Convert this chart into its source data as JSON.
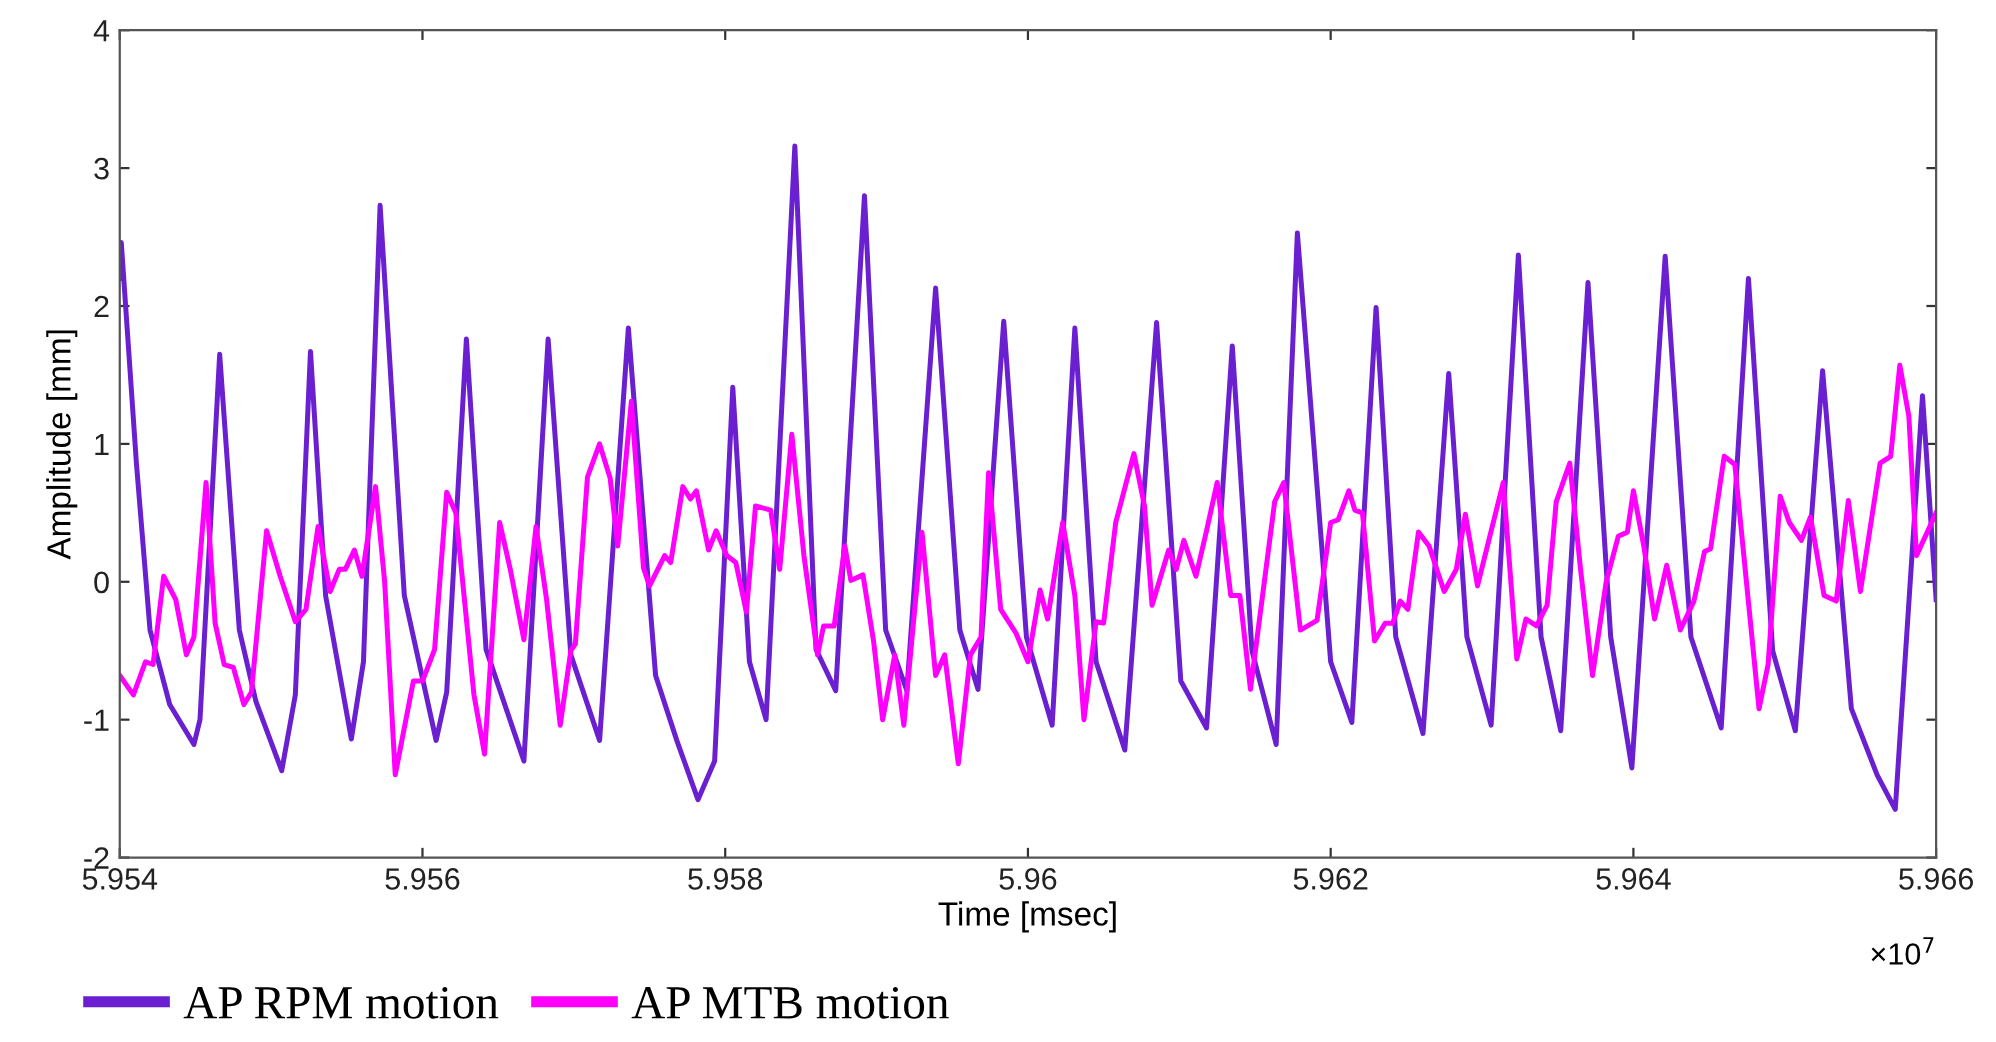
{
  "chart_data": {
    "type": "line",
    "xlabel": "Time [msec]",
    "ylabel": "Amplitude [mm]",
    "annotations": [
      "×10$^{7}$"
    ],
    "xlim": [
      5.954,
      5.966
    ],
    "xticks": [
      5.954,
      5.956,
      5.958,
      {
        "value": 5.96,
        "label": "5.96"
      },
      5.962,
      5.964,
      5.966
    ],
    "ylim": [
      -2,
      4
    ],
    "yticks": [
      -2,
      -1,
      0,
      1,
      2,
      3,
      4
    ],
    "grid": false,
    "legend": "bottom",
    "marker": "none",
    "line_style": "solid",
    "series": [
      {
        "name": "AP RPM motion",
        "color": "#6a1fd0",
        "x": [
          5.954,
          5.95401,
          5.95411,
          5.9542,
          5.95433,
          5.95449,
          5.95453,
          5.95466,
          5.95479,
          5.9549,
          5.95507,
          5.95516,
          5.95526,
          5.95536,
          5.95553,
          5.95561,
          5.95572,
          5.95588,
          5.95609,
          5.95616,
          5.95629,
          5.95642,
          5.95667,
          5.95683,
          5.95698,
          5.95717,
          5.95736,
          5.95754,
          5.95768,
          5.95782,
          5.95793,
          5.95805,
          5.95816,
          5.95827,
          5.95846,
          5.9586,
          5.95873,
          5.95892,
          5.95906,
          5.9592,
          5.95939,
          5.95955,
          5.95967,
          5.95984,
          5.95999,
          5.96016,
          5.96031,
          5.96045,
          5.96064,
          5.96085,
          5.96101,
          5.96118,
          5.96135,
          5.96148,
          5.96164,
          5.96178,
          5.962,
          5.96214,
          5.9623,
          5.96243,
          5.96261,
          5.96278,
          5.9629,
          5.96306,
          5.96324,
          5.96339,
          5.96352,
          5.9637,
          5.96385,
          5.96399,
          5.96421,
          5.96438,
          5.96458,
          5.96476,
          5.96492,
          5.96507,
          5.96525,
          5.96544,
          5.96561,
          5.96573,
          5.96591,
          5.966
        ],
        "values": [
          2.2,
          2.46,
          0.86,
          -0.35,
          -0.89,
          -1.18,
          -1.0,
          1.65,
          -0.35,
          -0.87,
          -1.37,
          -0.82,
          1.67,
          -0.1,
          -1.14,
          -0.58,
          2.73,
          -0.1,
          -1.15,
          -0.8,
          1.76,
          -0.49,
          -1.3,
          1.76,
          -0.53,
          -1.15,
          1.84,
          -0.68,
          -1.15,
          -1.58,
          -1.3,
          1.41,
          -0.58,
          -1.0,
          3.16,
          -0.49,
          -0.79,
          2.8,
          -0.35,
          -0.79,
          2.13,
          -0.35,
          -0.78,
          1.89,
          -0.4,
          -1.04,
          1.84,
          -0.58,
          -1.22,
          1.88,
          -0.72,
          -1.06,
          1.71,
          -0.5,
          -1.18,
          2.53,
          -0.58,
          -1.02,
          1.99,
          -0.4,
          -1.1,
          1.51,
          -0.4,
          -1.04,
          2.37,
          -0.4,
          -1.08,
          2.17,
          -0.4,
          -1.35,
          2.36,
          -0.4,
          -1.06,
          2.2,
          -0.5,
          -1.08,
          1.53,
          -0.92,
          -1.4,
          -1.65,
          1.35,
          -0.13
        ]
      },
      {
        "name": "AP MTB motion",
        "color": "#ff00ff",
        "x": [
          5.954,
          5.95409,
          5.95417,
          5.95422,
          5.95429,
          5.95437,
          5.95444,
          5.95449,
          5.95457,
          5.95463,
          5.95469,
          5.95475,
          5.95482,
          5.95487,
          5.95497,
          5.95506,
          5.95516,
          5.95523,
          5.95531,
          5.95539,
          5.95545,
          5.95549,
          5.95555,
          5.9556,
          5.95569,
          5.95575,
          5.95582,
          5.95594,
          5.956,
          5.95608,
          5.95616,
          5.95622,
          5.95634,
          5.95641,
          5.95651,
          5.95658,
          5.95667,
          5.95675,
          5.95682,
          5.95691,
          5.95698,
          5.95701,
          5.95709,
          5.95717,
          5.95724,
          5.95729,
          5.95738,
          5.95746,
          5.9575,
          5.9576,
          5.95764,
          5.95772,
          5.95777,
          5.95781,
          5.95789,
          5.95794,
          5.95801,
          5.95807,
          5.95814,
          5.9582,
          5.9583,
          5.95836,
          5.95844,
          5.95852,
          5.95861,
          5.95865,
          5.95872,
          5.95879,
          5.95883,
          5.95891,
          5.95898,
          5.95904,
          5.95912,
          5.95918,
          5.9593,
          5.95939,
          5.95945,
          5.95954,
          5.95962,
          5.95969,
          5.95974,
          5.95982,
          5.95992,
          5.96,
          5.96008,
          5.96013,
          5.96023,
          5.96031,
          5.96037,
          5.96045,
          5.9605,
          5.96058,
          5.9607,
          5.96077,
          5.96082,
          5.96093,
          5.96098,
          5.96103,
          5.96111,
          5.96118,
          5.96125,
          5.96134,
          5.9614,
          5.96147,
          5.96163,
          5.96169,
          5.9618,
          5.96191,
          5.962,
          5.96205,
          5.96212,
          5.96216,
          5.96221,
          5.96229,
          5.96236,
          5.96241,
          5.96246,
          5.96251,
          5.96258,
          5.96265,
          5.96275,
          5.96283,
          5.96289,
          5.96297,
          5.96314,
          5.96323,
          5.96329,
          5.96336,
          5.96343,
          5.96349,
          5.96358,
          5.96365,
          5.96373,
          5.96382,
          5.9639,
          5.96396,
          5.964,
          5.96407,
          5.96414,
          5.96422,
          5.96431,
          5.9644,
          5.96447,
          5.96451,
          5.9646,
          5.96467,
          5.96483,
          5.96489,
          5.96497,
          5.96503,
          5.96511,
          5.96517,
          5.96526,
          5.96534,
          5.96542,
          5.9655,
          5.96563,
          5.9657,
          5.96576,
          5.96582,
          5.96587,
          5.966
        ],
        "values": [
          -0.68,
          -0.82,
          -0.58,
          -0.6,
          0.04,
          -0.13,
          -0.53,
          -0.4,
          0.72,
          -0.3,
          -0.6,
          -0.62,
          -0.89,
          -0.8,
          0.37,
          0.04,
          -0.29,
          -0.2,
          0.4,
          -0.07,
          0.09,
          0.09,
          0.23,
          0.04,
          0.69,
          0.0,
          -1.4,
          -0.72,
          -0.72,
          -0.49,
          0.65,
          0.5,
          -0.82,
          -1.25,
          0.43,
          0.09,
          -0.42,
          0.4,
          -0.13,
          -1.04,
          -0.5,
          -0.45,
          0.76,
          1.0,
          0.75,
          0.26,
          1.31,
          0.1,
          -0.03,
          0.19,
          0.14,
          0.69,
          0.6,
          0.66,
          0.23,
          0.37,
          0.19,
          0.14,
          -0.22,
          0.55,
          0.52,
          0.09,
          1.07,
          0.19,
          -0.53,
          -0.32,
          -0.32,
          0.26,
          0.01,
          0.05,
          -0.43,
          -1.0,
          -0.53,
          -1.04,
          0.36,
          -0.68,
          -0.53,
          -1.32,
          -0.53,
          -0.4,
          0.79,
          -0.2,
          -0.37,
          -0.58,
          -0.06,
          -0.27,
          0.43,
          -0.1,
          -1.0,
          -0.29,
          -0.3,
          0.43,
          0.93,
          0.55,
          -0.17,
          0.23,
          0.09,
          0.3,
          0.04,
          0.37,
          0.72,
          -0.1,
          -0.1,
          -0.78,
          0.58,
          0.72,
          -0.35,
          -0.28,
          0.43,
          0.45,
          0.66,
          0.52,
          0.5,
          -0.43,
          -0.3,
          -0.3,
          -0.14,
          -0.2,
          0.36,
          0.26,
          -0.07,
          0.09,
          0.49,
          -0.03,
          0.72,
          -0.56,
          -0.27,
          -0.32,
          -0.17,
          0.58,
          0.86,
          0.1,
          -0.68,
          0.0,
          0.33,
          0.36,
          0.66,
          0.25,
          -0.27,
          0.12,
          -0.35,
          -0.14,
          0.22,
          0.24,
          0.91,
          0.85,
          -0.92,
          -0.6,
          0.62,
          0.43,
          0.3,
          0.47,
          -0.1,
          -0.14,
          0.59,
          -0.07,
          0.86,
          0.91,
          1.57,
          1.2,
          0.19,
          0.5
        ]
      }
    ]
  }
}
